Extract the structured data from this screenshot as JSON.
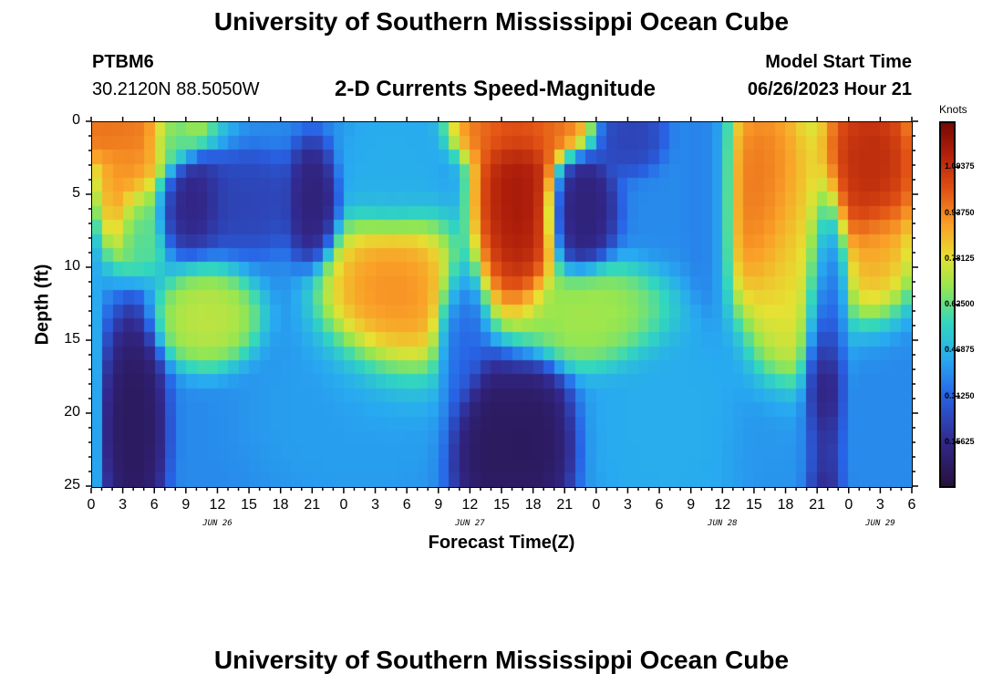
{
  "page": {
    "title_top": "University of Southern Mississippi Ocean Cube",
    "title_bottom": "University of Southern Mississippi Ocean Cube",
    "station": "PTBM6",
    "coords": "30.2120N  88.5050W",
    "model_label": "Model Start Time",
    "model_time": "06/26/2023 Hour 21"
  },
  "chart_data": {
    "type": "heatmap",
    "title": "2-D Currents Speed-Magnitude",
    "xlabel": "Forecast Time(Z)",
    "ylabel": "Depth (ft)",
    "x_range_hours": [
      0,
      78
    ],
    "y_range_ft": [
      0,
      25
    ],
    "x_tick_labels": [
      "0",
      "3",
      "6",
      "9",
      "12",
      "15",
      "18",
      "21",
      "0",
      "3",
      "6",
      "9",
      "12",
      "15",
      "18",
      "21",
      "0",
      "3",
      "6",
      "9",
      "12",
      "15",
      "18",
      "21",
      "0",
      "3",
      "6"
    ],
    "y_tick_labels": [
      "0",
      "5",
      "10",
      "15",
      "20",
      "25"
    ],
    "date_labels": [
      {
        "label": "JUN 26",
        "hour": 12
      },
      {
        "label": "JUN 27",
        "hour": 36
      },
      {
        "label": "JUN 28",
        "hour": 60
      },
      {
        "label": "JUN 29",
        "hour": 75
      }
    ],
    "colorbar": {
      "unit": "Knots",
      "min": 0.0,
      "max": 1.25,
      "tick_values": [
        1.09375,
        0.9375,
        0.78125,
        0.625,
        0.46875,
        0.3125,
        0.15625
      ],
      "tick_labels": [
        "1.09375",
        "0.93750",
        "0.78125",
        "0.62500",
        "0.46875",
        "0.31250",
        "0.15625"
      ]
    },
    "value_units": "knots",
    "description": "Current speed magnitude by forecast hour (x) and depth (y), values estimated from the color scale",
    "features": [
      {
        "hour": 4,
        "depth": 3,
        "value": 0.95,
        "sx": 2.5,
        "sy": 4
      },
      {
        "hour": 2,
        "depth": 0.5,
        "value": 1.0,
        "sx": 5,
        "sy": 1.5
      },
      {
        "hour": 4.5,
        "depth": 7,
        "value": 0.55,
        "sx": 1.2,
        "sy": 2
      },
      {
        "hour": 4,
        "depth": 21,
        "value": 0.05,
        "sx": 1.8,
        "sy": 5
      },
      {
        "hour": 0,
        "depth": 20,
        "value": 0.45,
        "sx": 0.6,
        "sy": 8
      },
      {
        "hour": 7.5,
        "depth": 1,
        "value": 0.55,
        "sx": 1.5,
        "sy": 1.5
      },
      {
        "hour": 9,
        "depth": 5.5,
        "value": 0.12,
        "sx": 2.5,
        "sy": 2
      },
      {
        "hour": 21,
        "depth": 5.5,
        "value": 0.1,
        "sx": 1.5,
        "sy": 2.5
      },
      {
        "hour": 15,
        "depth": 5.5,
        "value": 0.22,
        "sx": 3,
        "sy": 2
      },
      {
        "hour": 11,
        "depth": 13.5,
        "value": 0.75,
        "sx": 3,
        "sy": 2
      },
      {
        "hour": 28.5,
        "depth": 12.5,
        "value": 0.95,
        "sx": 4,
        "sy": 4
      },
      {
        "hour": 28.5,
        "depth": 3,
        "value": 0.45,
        "sx": 3,
        "sy": 3
      },
      {
        "hour": 25,
        "depth": 20,
        "value": 0.42,
        "sx": 6,
        "sy": 4
      },
      {
        "hour": 38,
        "depth": 22,
        "value": 0.05,
        "sx": 2.5,
        "sy": 3.5
      },
      {
        "hour": 42,
        "depth": 22,
        "value": 0.05,
        "sx": 2.5,
        "sy": 3.5
      },
      {
        "hour": 35,
        "depth": 15,
        "value": 0.3,
        "sx": 1.5,
        "sy": 3
      },
      {
        "hour": 40.5,
        "depth": 5,
        "value": 1.2,
        "sx": 2.5,
        "sy": 5
      },
      {
        "hour": 39,
        "depth": 0.5,
        "value": 1.0,
        "sx": 3,
        "sy": 1.5
      },
      {
        "hour": 43,
        "depth": 0.5,
        "value": 1.0,
        "sx": 3,
        "sy": 1.5
      },
      {
        "hour": 46.5,
        "depth": 6,
        "value": 0.1,
        "sx": 2,
        "sy": 2.5
      },
      {
        "hour": 48,
        "depth": 13.5,
        "value": 0.72,
        "sx": 4.5,
        "sy": 2.2
      },
      {
        "hour": 51,
        "depth": 1,
        "value": 0.22,
        "sx": 2,
        "sy": 1.5
      },
      {
        "hour": 55,
        "depth": 21,
        "value": 0.45,
        "sx": 5,
        "sy": 5
      },
      {
        "hour": 59,
        "depth": 5,
        "value": 0.35,
        "sx": 1.5,
        "sy": 5
      },
      {
        "hour": 64,
        "depth": 5,
        "value": 1.0,
        "sx": 3,
        "sy": 5
      },
      {
        "hour": 67,
        "depth": 10,
        "value": 0.8,
        "sx": 3,
        "sy": 6
      },
      {
        "hour": 66,
        "depth": 22,
        "value": 0.4,
        "sx": 4,
        "sy": 3
      },
      {
        "hour": 69.5,
        "depth": 19,
        "value": 0.05,
        "sx": 1.3,
        "sy": 7
      },
      {
        "hour": 70,
        "depth": 11,
        "value": 0.28,
        "sx": 1.2,
        "sy": 4
      },
      {
        "hour": 74,
        "depth": 3,
        "value": 1.15,
        "sx": 3,
        "sy": 4
      },
      {
        "hour": 75,
        "depth": 10,
        "value": 0.9,
        "sx": 2,
        "sy": 3
      },
      {
        "hour": 76,
        "depth": 20,
        "value": 0.38,
        "sx": 2.5,
        "sy": 6
      }
    ],
    "background_value": 0.38
  }
}
